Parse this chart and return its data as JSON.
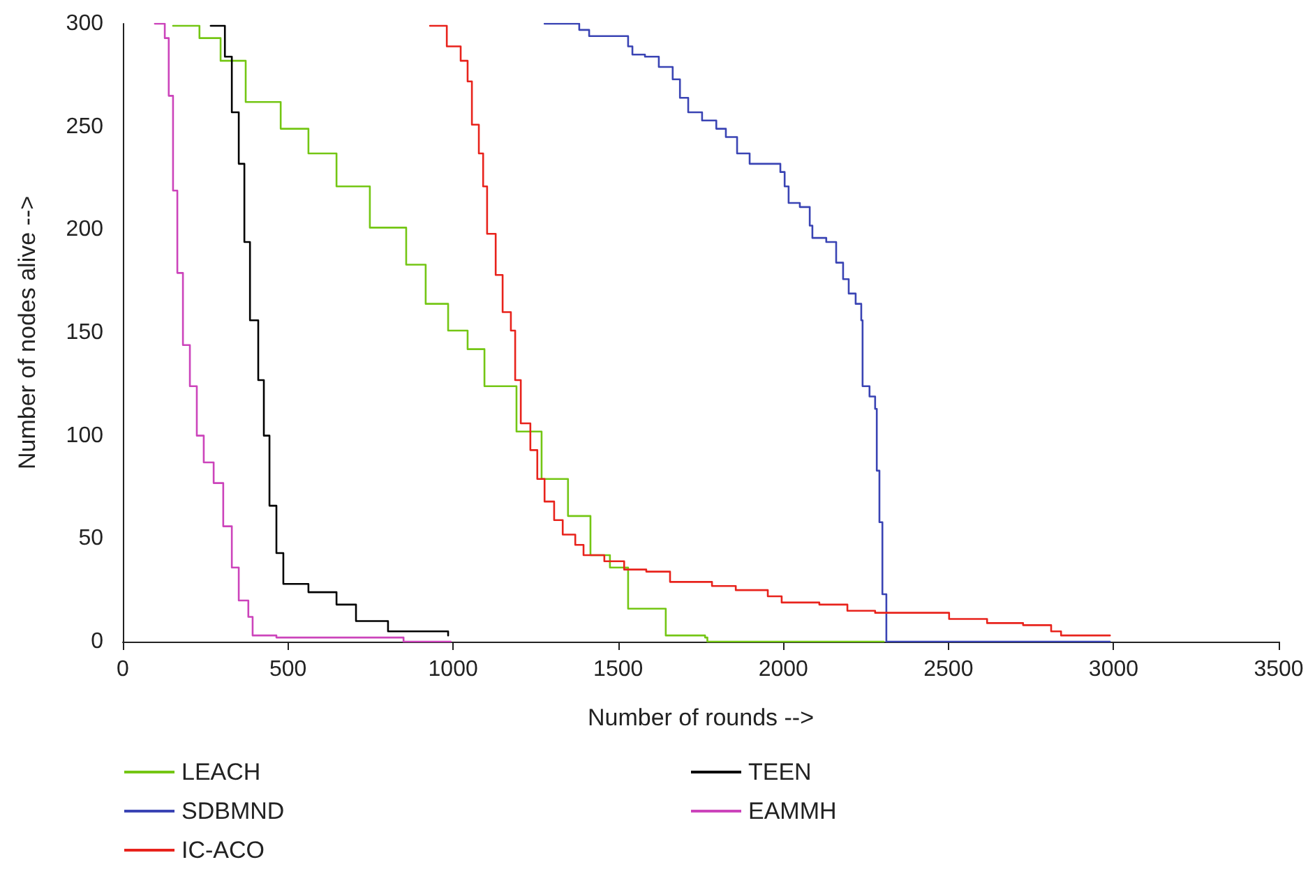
{
  "chart_data": {
    "type": "step",
    "xlabel": "Number of rounds -->",
    "ylabel": "Number of nodes alive -->",
    "xlim": [
      0,
      3500
    ],
    "xticks": [
      0,
      500,
      1000,
      1500,
      2000,
      2500,
      3000,
      3500
    ],
    "ylim": [
      0,
      300
    ],
    "yticks": [
      0,
      50,
      100,
      150,
      200,
      250,
      300
    ],
    "grid": false,
    "legend": "bottom",
    "marker": "none",
    "line_style": "solid",
    "series": [
      {
        "name": "LEACH",
        "color": "#74c614",
        "x": [
          152,
          232,
          296,
          372,
          478,
          562,
          647,
          748,
          858,
          917,
          985,
          1044,
          1095,
          1192,
          1268,
          1348,
          1416,
          1475,
          1530,
          1644,
          1763,
          1770,
          2304
        ],
        "values": [
          299,
          293,
          282,
          262,
          249,
          237,
          221,
          201,
          183,
          164,
          151,
          142,
          124,
          102,
          79,
          61,
          42,
          36,
          16,
          3,
          2,
          0,
          0
        ]
      },
      {
        "name": "SDBMND",
        "color": "#3a44b4",
        "x": [
          1277,
          1382,
          1412,
          1496,
          1530,
          1543,
          1581,
          1623,
          1665,
          1687,
          1712,
          1754,
          1797,
          1826,
          1860,
          1898,
          1940,
          1991,
          2004,
          2016,
          2050,
          2080,
          2088,
          2130,
          2160,
          2181,
          2198,
          2219,
          2236,
          2240,
          2261,
          2278,
          2283,
          2291,
          2300,
          2312,
          2989
        ],
        "values": [
          300,
          297,
          294,
          294,
          289,
          285,
          284,
          279,
          273,
          264,
          257,
          253,
          249,
          245,
          237,
          232,
          232,
          228,
          221,
          213,
          211,
          202,
          196,
          194,
          184,
          176,
          169,
          164,
          156,
          124,
          119,
          113,
          83,
          58,
          23,
          0,
          0
        ]
      },
      {
        "name": "IC-ACO",
        "color": "#e8231c",
        "x": [
          930,
          981,
          1023,
          1044,
          1057,
          1078,
          1091,
          1103,
          1129,
          1150,
          1175,
          1188,
          1205,
          1234,
          1255,
          1277,
          1306,
          1332,
          1370,
          1395,
          1458,
          1518,
          1585,
          1657,
          1784,
          1856,
          1953,
          1995,
          2109,
          2194,
          2278,
          2426,
          2502,
          2617,
          2726,
          2811,
          2841,
          2989
        ],
        "values": [
          299,
          289,
          282,
          272,
          251,
          237,
          221,
          198,
          178,
          160,
          151,
          127,
          106,
          93,
          79,
          68,
          59,
          52,
          47,
          42,
          39,
          35,
          34,
          29,
          27,
          25,
          22,
          19,
          18,
          15,
          14,
          14,
          11,
          9,
          8,
          5,
          3,
          3
        ]
      },
      {
        "name": "TEEN",
        "color": "#000000",
        "x": [
          266,
          309,
          330,
          351,
          368,
          385,
          410,
          427,
          444,
          465,
          486,
          562,
          647,
          706,
          803,
          985
        ],
        "values": [
          299,
          284,
          257,
          232,
          194,
          156,
          127,
          100,
          66,
          43,
          28,
          24,
          18,
          10,
          5,
          3
        ]
      },
      {
        "name": "EAMMH",
        "color": "#cc44bb",
        "x": [
          97,
          127,
          139,
          152,
          165,
          182,
          203,
          224,
          245,
          275,
          304,
          330,
          351,
          380,
          393,
          465,
          845,
          850,
          993
        ],
        "values": [
          300,
          293,
          265,
          219,
          179,
          144,
          124,
          100,
          87,
          77,
          56,
          36,
          20,
          12,
          3,
          2,
          2,
          0,
          0
        ]
      }
    ]
  }
}
